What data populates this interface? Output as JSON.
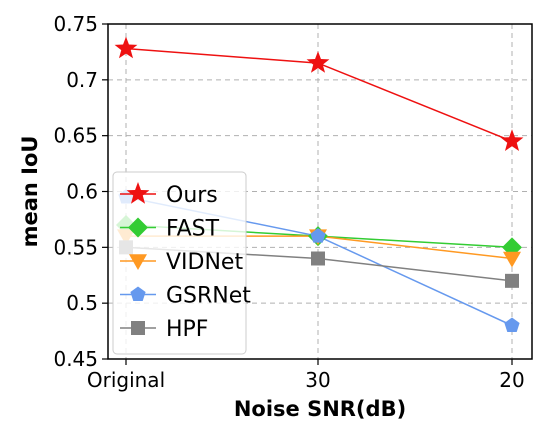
{
  "chart_data": {
    "type": "line",
    "categories": [
      "Original",
      "30",
      "20"
    ],
    "xlabel": "Noise SNR(dB)",
    "ylabel": "mean IoU",
    "ylim": [
      0.45,
      0.75
    ],
    "yticks": [
      "0.45",
      "0.5",
      "0.55",
      "0.6",
      "0.65",
      "0.7",
      "0.75"
    ],
    "grid": true,
    "legend_position": "lower-left",
    "series": [
      {
        "name": "Ours",
        "values": [
          0.728,
          0.715,
          0.645
        ],
        "color": "#ee1111",
        "marker": "star"
      },
      {
        "name": "FAST",
        "values": [
          0.57,
          0.56,
          0.55
        ],
        "color": "#33cc33",
        "marker": "diamond"
      },
      {
        "name": "VIDNet",
        "values": [
          0.56,
          0.56,
          0.54
        ],
        "color": "#ff9922",
        "marker": "triangle-down"
      },
      {
        "name": "GSRNet",
        "values": [
          0.595,
          0.56,
          0.48
        ],
        "color": "#6699ee",
        "marker": "pentagon"
      },
      {
        "name": "HPF",
        "values": [
          0.55,
          0.54,
          0.52
        ],
        "color": "#808080",
        "marker": "square"
      }
    ]
  }
}
